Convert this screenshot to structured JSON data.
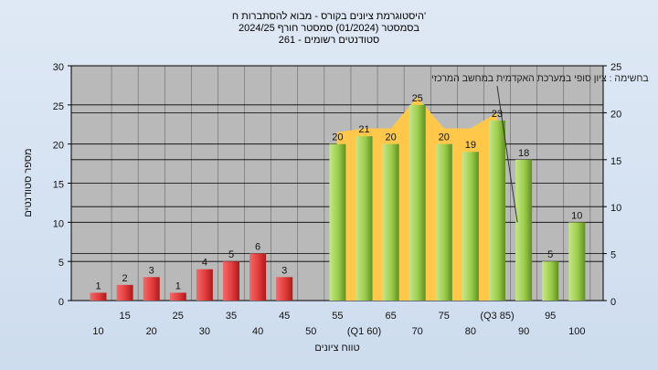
{
  "chart_data": {
    "type": "bar",
    "title_lines": [
      "היסטוגרמת ציונים בקורס - מבוא להסתברות ח'",
      "בסמסטר  (01/2024)  סמסטר חורף  2024/25",
      "סטודנטים רשומים - 261"
    ],
    "note": "בחשימה : ציון סופי במערכת האקדמית במחשב המרכזי",
    "xlabel": "טווח ציונים",
    "ylabel": "מספר סטודנטים",
    "ylim": [
      0,
      30
    ],
    "y2lim": [
      0,
      25
    ],
    "y_ticks": [
      "0",
      "5",
      "10",
      "15",
      "20",
      "25",
      "30"
    ],
    "y2_ticks": [
      "0",
      "5",
      "10",
      "15",
      "20",
      "25"
    ],
    "categories": [
      10,
      15,
      20,
      25,
      30,
      35,
      40,
      45,
      50,
      55,
      60,
      65,
      70,
      75,
      80,
      85,
      90,
      95,
      100
    ],
    "x_tick_labels": [
      "10",
      "15",
      "20",
      "25",
      "30",
      "35",
      "40",
      "45",
      "50",
      "55",
      "(Q1 60)",
      "65",
      "70",
      "75",
      "80",
      "(Q3 85)",
      "90",
      "95",
      "100"
    ],
    "values": [
      1,
      2,
      3,
      1,
      4,
      5,
      6,
      3,
      0,
      20,
      21,
      20,
      25,
      20,
      19,
      23,
      18,
      5,
      10
    ],
    "bar_labels": [
      "1",
      "2",
      "3",
      "1",
      "4",
      "5",
      "6",
      "3",
      "",
      "20",
      "21",
      "20",
      "25",
      "20",
      "19",
      "23",
      "18",
      "5",
      "10"
    ],
    "fail_color": "#e23b3b",
    "pass_color": "#9ccc4a",
    "band_color": "#ffc84a",
    "plot_bg": "#b9b9b9",
    "grid": true
  }
}
